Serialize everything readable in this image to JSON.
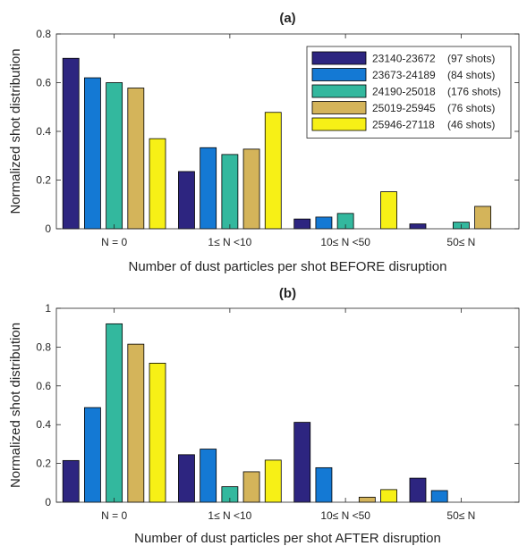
{
  "chart_data": [
    {
      "type": "bar",
      "title": "(a)",
      "xlabel": "Number of dust particles per shot BEFORE disruption",
      "ylabel": "Normalized shot distribution",
      "categories": [
        "N = 0",
        "1≤ N <10",
        "10≤ N <50",
        "50≤ N"
      ],
      "ylim": [
        0,
        0.8
      ],
      "yticks": [
        "0",
        "0.2",
        "0.4",
        "0.6",
        "0.8"
      ],
      "grid": false,
      "legend_position": "top-right",
      "series": [
        {
          "name": "23140-23672",
          "shots": "(97 shots)",
          "color": "#2d2580",
          "values": [
            0.7,
            0.235,
            0.04,
            0.02
          ]
        },
        {
          "name": "23673-24189",
          "shots": "(84 shots)",
          "color": "#1479d4",
          "values": [
            0.62,
            0.333,
            0.048,
            0.0
          ]
        },
        {
          "name": "24190-25018",
          "shots": "(176 shots)",
          "color": "#33b89e",
          "values": [
            0.6,
            0.305,
            0.063,
            0.027
          ]
        },
        {
          "name": "25019-25945",
          "shots": "(76 shots)",
          "color": "#d4b45a",
          "values": [
            0.578,
            0.327,
            0.0,
            0.092
          ]
        },
        {
          "name": "25946-27118",
          "shots": "(46 shots)",
          "color": "#f7f016",
          "values": [
            0.37,
            0.478,
            0.152,
            0.0
          ]
        }
      ]
    },
    {
      "type": "bar",
      "title": "(b)",
      "xlabel": "Number of dust particles per shot AFTER disruption",
      "ylabel": "Normalized shot distribution",
      "categories": [
        "N = 0",
        "1≤ N <10",
        "10≤ N <50",
        "50≤ N"
      ],
      "ylim": [
        0,
        1
      ],
      "yticks": [
        "0",
        "0.2",
        "0.4",
        "0.6",
        "0.8",
        "1"
      ],
      "grid": false,
      "series": [
        {
          "name": "23140-23672",
          "color": "#2d2580",
          "values": [
            0.215,
            0.245,
            0.412,
            0.124
          ]
        },
        {
          "name": "23673-24189",
          "color": "#1479d4",
          "values": [
            0.488,
            0.274,
            0.178,
            0.06
          ]
        },
        {
          "name": "24190-25018",
          "color": "#33b89e",
          "values": [
            0.92,
            0.08,
            0.0,
            0.0
          ]
        },
        {
          "name": "25019-25945",
          "color": "#d4b45a",
          "values": [
            0.815,
            0.157,
            0.026,
            0.0
          ]
        },
        {
          "name": "25946-27118",
          "color": "#f7f016",
          "values": [
            0.717,
            0.217,
            0.065,
            0.0
          ]
        }
      ]
    }
  ]
}
